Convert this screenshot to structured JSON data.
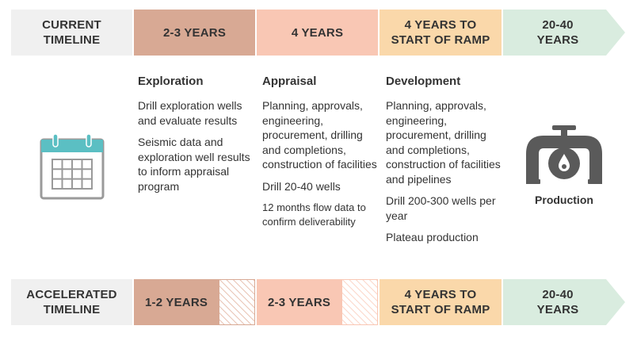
{
  "current_timeline": {
    "label": "CURRENT\nTIMELINE",
    "stages": [
      "2-3 YEARS",
      "4 YEARS",
      "4 YEARS TO\nSTART OF RAMP",
      "20-40\nYEARS"
    ]
  },
  "phases": [
    {
      "title": "Exploration",
      "items": [
        "Drill exploration wells and evaluate results",
        "Seismic data and exploration well results to inform appraisal program"
      ]
    },
    {
      "title": "Appraisal",
      "items": [
        "Planning, approvals, engineering, procurement, drilling and completions, construction of facilities",
        "Drill 20-40 wells",
        "12 months flow data to confirm deliverability"
      ]
    },
    {
      "title": "Development",
      "items": [
        "Planning, approvals, engineering, procurement, drilling and completions, construction of facilities and pipelines",
        "Drill 200-300 wells per year",
        "Plateau production"
      ]
    }
  ],
  "production": {
    "label": "Production",
    "icon": "pipe-valve-icon"
  },
  "calendar": {
    "icon": "calendar-icon"
  },
  "accelerated_timeline": {
    "label": "ACCELERATED\nTIMELINE",
    "stages": [
      "1-2 YEARS",
      "2-3 YEARS",
      "4 YEARS TO\nSTART OF RAMP",
      "20-40\nYEARS"
    ]
  },
  "colors": {
    "label_bg": "#f0f0f0",
    "exploration": "#d8a994",
    "appraisal": "#f9c7b4",
    "development": "#fad8aa",
    "production": "#d9ecdf",
    "calendar_teal": "#5bbfc3",
    "icon_gray": "#5a5a5a"
  }
}
